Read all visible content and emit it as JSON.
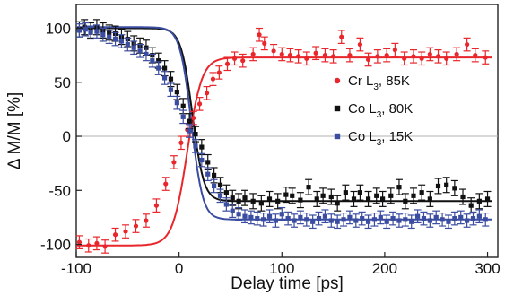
{
  "chart_data": {
    "type": "scatter",
    "xlabel": "Delay time [ps]",
    "ylabel": "Δ M/M [%]",
    "xlim": [
      -100,
      310
    ],
    "ylim": [
      -112,
      122
    ],
    "x_ticks": [
      -100,
      0,
      100,
      200,
      300
    ],
    "x_tick_labels": [
      "-100",
      "0",
      "100",
      "200",
      "300"
    ],
    "y_ticks": [
      -100,
      -50,
      0,
      50,
      100
    ],
    "y_tick_labels": [
      "-100",
      "-50",
      "0",
      "50",
      "100"
    ],
    "zero_line": true,
    "grid": false,
    "legend_position": "right",
    "series": [
      {
        "name": "Cr L3, 85K",
        "legend_main": "Cr L",
        "legend_sub": "3",
        "legend_rest": ", 85K",
        "color": "#e8262b",
        "marker": "circle",
        "fit_color": "#e8262b",
        "fit": {
          "offset": -14,
          "amplitude": 87,
          "center": 8,
          "width": 14
        },
        "errorbar": 6,
        "points": [
          [
            -97,
            -98
          ],
          [
            -88,
            -101
          ],
          [
            -80,
            -99
          ],
          [
            -72,
            -102
          ],
          [
            -62,
            -91
          ],
          [
            -52,
            -88
          ],
          [
            -42,
            -83
          ],
          [
            -32,
            -78
          ],
          [
            -22,
            -64
          ],
          [
            -13,
            -44
          ],
          [
            -5,
            -24
          ],
          [
            2,
            -6
          ],
          [
            8,
            6
          ],
          [
            14,
            17
          ],
          [
            20,
            30
          ],
          [
            27,
            40
          ],
          [
            33,
            53
          ],
          [
            39,
            59
          ],
          [
            47,
            67
          ],
          [
            54,
            72
          ],
          [
            62,
            70
          ],
          [
            72,
            76
          ],
          [
            78,
            94
          ],
          [
            83,
            86
          ],
          [
            92,
            79
          ],
          [
            100,
            76
          ],
          [
            108,
            75
          ],
          [
            116,
            74
          ],
          [
            124,
            72
          ],
          [
            133,
            77
          ],
          [
            142,
            75
          ],
          [
            150,
            74
          ],
          [
            158,
            92
          ],
          [
            166,
            75
          ],
          [
            176,
            85
          ],
          [
            184,
            71
          ],
          [
            193,
            74
          ],
          [
            202,
            75
          ],
          [
            210,
            80
          ],
          [
            219,
            72
          ],
          [
            228,
            74
          ],
          [
            236,
            72
          ],
          [
            244,
            76
          ],
          [
            252,
            74
          ],
          [
            260,
            72
          ],
          [
            270,
            76
          ],
          [
            280,
            85
          ],
          [
            288,
            75
          ],
          [
            298,
            73
          ]
        ]
      },
      {
        "name": "Co L3, 80K",
        "legend_main": "Co L",
        "legend_sub": "3",
        "legend_rest": ", 80K",
        "color": "#111111",
        "marker": "square",
        "fit_color": "#111111",
        "fit": {
          "offset": 20,
          "amplitude": -80,
          "center": 13,
          "width": 11
        },
        "errorbar": 7,
        "points": [
          [
            -97,
            99
          ],
          [
            -92,
            101
          ],
          [
            -86,
            98
          ],
          [
            -80,
            101
          ],
          [
            -74,
            98
          ],
          [
            -68,
            96
          ],
          [
            -62,
            95
          ],
          [
            -56,
            92
          ],
          [
            -50,
            90
          ],
          [
            -44,
            86
          ],
          [
            -38,
            84
          ],
          [
            -32,
            82
          ],
          [
            -26,
            75
          ],
          [
            -20,
            70
          ],
          [
            -14,
            63
          ],
          [
            -8,
            53
          ],
          [
            -2,
            41
          ],
          [
            4,
            28
          ],
          [
            10,
            14
          ],
          [
            16,
            2
          ],
          [
            22,
            -10
          ],
          [
            28,
            -24
          ],
          [
            34,
            -36
          ],
          [
            40,
            -45
          ],
          [
            46,
            -52
          ],
          [
            52,
            -57
          ],
          [
            58,
            -60
          ],
          [
            64,
            -57
          ],
          [
            72,
            -60
          ],
          [
            80,
            -62
          ],
          [
            88,
            -58
          ],
          [
            96,
            -60
          ],
          [
            104,
            -54
          ],
          [
            110,
            -55
          ],
          [
            118,
            -59
          ],
          [
            126,
            -47
          ],
          [
            134,
            -58
          ],
          [
            140,
            -55
          ],
          [
            148,
            -56
          ],
          [
            154,
            -62
          ],
          [
            162,
            -52
          ],
          [
            170,
            -58
          ],
          [
            176,
            -52
          ],
          [
            184,
            -58
          ],
          [
            192,
            -55
          ],
          [
            198,
            -58
          ],
          [
            206,
            -55
          ],
          [
            214,
            -47
          ],
          [
            220,
            -60
          ],
          [
            228,
            -55
          ],
          [
            236,
            -52
          ],
          [
            244,
            -58
          ],
          [
            252,
            -46
          ],
          [
            260,
            -45
          ],
          [
            268,
            -48
          ],
          [
            276,
            -56
          ],
          [
            284,
            -64
          ],
          [
            292,
            -60
          ],
          [
            300,
            -58
          ]
        ]
      },
      {
        "name": "Co L3, 15K",
        "legend_main": "Co L",
        "legend_sub": "3",
        "legend_rest": ", 15K",
        "color": "#3b4da0",
        "marker": "square",
        "fit_color": "#3b4da0",
        "fit": {
          "offset": 12,
          "amplitude": -89,
          "center": 12,
          "width": 11
        },
        "errorbar": 6,
        "points": [
          [
            -97,
            98
          ],
          [
            -91,
            99
          ],
          [
            -86,
            96
          ],
          [
            -80,
            97
          ],
          [
            -74,
            94
          ],
          [
            -68,
            92
          ],
          [
            -62,
            90
          ],
          [
            -56,
            88
          ],
          [
            -50,
            85
          ],
          [
            -44,
            82
          ],
          [
            -38,
            79
          ],
          [
            -32,
            76
          ],
          [
            -26,
            70
          ],
          [
            -20,
            63
          ],
          [
            -14,
            54
          ],
          [
            -8,
            43
          ],
          [
            -2,
            31
          ],
          [
            4,
            18
          ],
          [
            10,
            5
          ],
          [
            16,
            -9
          ],
          [
            22,
            -22
          ],
          [
            28,
            -35
          ],
          [
            34,
            -46
          ],
          [
            40,
            -55
          ],
          [
            46,
            -63
          ],
          [
            52,
            -69
          ],
          [
            58,
            -72
          ],
          [
            64,
            -74
          ],
          [
            70,
            -75
          ],
          [
            76,
            -76
          ],
          [
            82,
            -77
          ],
          [
            88,
            -74
          ],
          [
            94,
            -78
          ],
          [
            100,
            -72
          ],
          [
            106,
            -76
          ],
          [
            112,
            -78
          ],
          [
            118,
            -75
          ],
          [
            124,
            -77
          ],
          [
            130,
            -79
          ],
          [
            136,
            -76
          ],
          [
            142,
            -74
          ],
          [
            148,
            -78
          ],
          [
            154,
            -79
          ],
          [
            160,
            -77
          ],
          [
            166,
            -75
          ],
          [
            172,
            -78
          ],
          [
            178,
            -76
          ],
          [
            184,
            -79
          ],
          [
            190,
            -77
          ],
          [
            196,
            -75
          ],
          [
            202,
            -79
          ],
          [
            208,
            -76
          ],
          [
            214,
            -78
          ],
          [
            220,
            -77
          ],
          [
            226,
            -79
          ],
          [
            232,
            -74
          ],
          [
            238,
            -76
          ],
          [
            244,
            -78
          ],
          [
            250,
            -75
          ],
          [
            256,
            -77
          ],
          [
            262,
            -79
          ],
          [
            268,
            -76
          ],
          [
            274,
            -75
          ],
          [
            280,
            -78
          ],
          [
            286,
            -76
          ],
          [
            292,
            -74
          ],
          [
            298,
            -77
          ]
        ]
      }
    ]
  }
}
